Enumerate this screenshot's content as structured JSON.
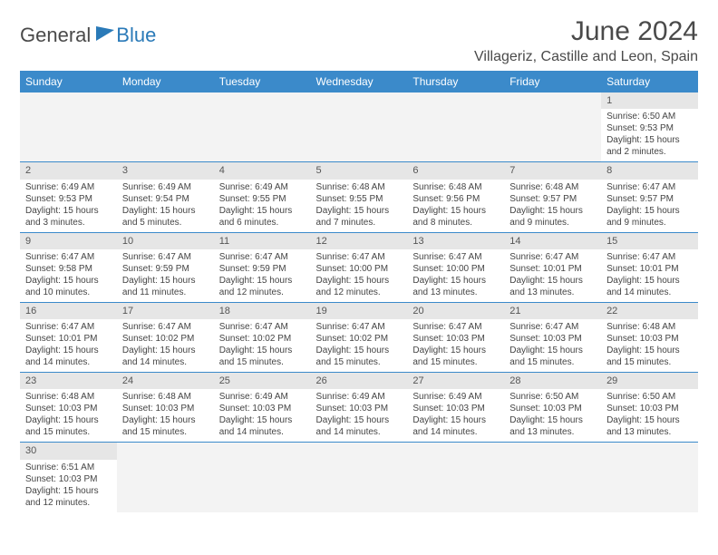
{
  "brand": {
    "general": "General",
    "blue": "Blue"
  },
  "title": "June 2024",
  "location": "Villageriz, Castille and Leon, Spain",
  "colors": {
    "header_bg": "#3b8aca",
    "header_text": "#ffffff",
    "daynum_bg": "#e6e6e6",
    "row_border": "#3b8aca"
  },
  "weekdays": [
    "Sunday",
    "Monday",
    "Tuesday",
    "Wednesday",
    "Thursday",
    "Friday",
    "Saturday"
  ],
  "weeks": [
    [
      null,
      null,
      null,
      null,
      null,
      null,
      {
        "n": "1",
        "sr": "Sunrise: 6:50 AM",
        "ss": "Sunset: 9:53 PM",
        "dl": "Daylight: 15 hours and 2 minutes."
      }
    ],
    [
      {
        "n": "2",
        "sr": "Sunrise: 6:49 AM",
        "ss": "Sunset: 9:53 PM",
        "dl": "Daylight: 15 hours and 3 minutes."
      },
      {
        "n": "3",
        "sr": "Sunrise: 6:49 AM",
        "ss": "Sunset: 9:54 PM",
        "dl": "Daylight: 15 hours and 5 minutes."
      },
      {
        "n": "4",
        "sr": "Sunrise: 6:49 AM",
        "ss": "Sunset: 9:55 PM",
        "dl": "Daylight: 15 hours and 6 minutes."
      },
      {
        "n": "5",
        "sr": "Sunrise: 6:48 AM",
        "ss": "Sunset: 9:55 PM",
        "dl": "Daylight: 15 hours and 7 minutes."
      },
      {
        "n": "6",
        "sr": "Sunrise: 6:48 AM",
        "ss": "Sunset: 9:56 PM",
        "dl": "Daylight: 15 hours and 8 minutes."
      },
      {
        "n": "7",
        "sr": "Sunrise: 6:48 AM",
        "ss": "Sunset: 9:57 PM",
        "dl": "Daylight: 15 hours and 9 minutes."
      },
      {
        "n": "8",
        "sr": "Sunrise: 6:47 AM",
        "ss": "Sunset: 9:57 PM",
        "dl": "Daylight: 15 hours and 9 minutes."
      }
    ],
    [
      {
        "n": "9",
        "sr": "Sunrise: 6:47 AM",
        "ss": "Sunset: 9:58 PM",
        "dl": "Daylight: 15 hours and 10 minutes."
      },
      {
        "n": "10",
        "sr": "Sunrise: 6:47 AM",
        "ss": "Sunset: 9:59 PM",
        "dl": "Daylight: 15 hours and 11 minutes."
      },
      {
        "n": "11",
        "sr": "Sunrise: 6:47 AM",
        "ss": "Sunset: 9:59 PM",
        "dl": "Daylight: 15 hours and 12 minutes."
      },
      {
        "n": "12",
        "sr": "Sunrise: 6:47 AM",
        "ss": "Sunset: 10:00 PM",
        "dl": "Daylight: 15 hours and 12 minutes."
      },
      {
        "n": "13",
        "sr": "Sunrise: 6:47 AM",
        "ss": "Sunset: 10:00 PM",
        "dl": "Daylight: 15 hours and 13 minutes."
      },
      {
        "n": "14",
        "sr": "Sunrise: 6:47 AM",
        "ss": "Sunset: 10:01 PM",
        "dl": "Daylight: 15 hours and 13 minutes."
      },
      {
        "n": "15",
        "sr": "Sunrise: 6:47 AM",
        "ss": "Sunset: 10:01 PM",
        "dl": "Daylight: 15 hours and 14 minutes."
      }
    ],
    [
      {
        "n": "16",
        "sr": "Sunrise: 6:47 AM",
        "ss": "Sunset: 10:01 PM",
        "dl": "Daylight: 15 hours and 14 minutes."
      },
      {
        "n": "17",
        "sr": "Sunrise: 6:47 AM",
        "ss": "Sunset: 10:02 PM",
        "dl": "Daylight: 15 hours and 14 minutes."
      },
      {
        "n": "18",
        "sr": "Sunrise: 6:47 AM",
        "ss": "Sunset: 10:02 PM",
        "dl": "Daylight: 15 hours and 15 minutes."
      },
      {
        "n": "19",
        "sr": "Sunrise: 6:47 AM",
        "ss": "Sunset: 10:02 PM",
        "dl": "Daylight: 15 hours and 15 minutes."
      },
      {
        "n": "20",
        "sr": "Sunrise: 6:47 AM",
        "ss": "Sunset: 10:03 PM",
        "dl": "Daylight: 15 hours and 15 minutes."
      },
      {
        "n": "21",
        "sr": "Sunrise: 6:47 AM",
        "ss": "Sunset: 10:03 PM",
        "dl": "Daylight: 15 hours and 15 minutes."
      },
      {
        "n": "22",
        "sr": "Sunrise: 6:48 AM",
        "ss": "Sunset: 10:03 PM",
        "dl": "Daylight: 15 hours and 15 minutes."
      }
    ],
    [
      {
        "n": "23",
        "sr": "Sunrise: 6:48 AM",
        "ss": "Sunset: 10:03 PM",
        "dl": "Daylight: 15 hours and 15 minutes."
      },
      {
        "n": "24",
        "sr": "Sunrise: 6:48 AM",
        "ss": "Sunset: 10:03 PM",
        "dl": "Daylight: 15 hours and 15 minutes."
      },
      {
        "n": "25",
        "sr": "Sunrise: 6:49 AM",
        "ss": "Sunset: 10:03 PM",
        "dl": "Daylight: 15 hours and 14 minutes."
      },
      {
        "n": "26",
        "sr": "Sunrise: 6:49 AM",
        "ss": "Sunset: 10:03 PM",
        "dl": "Daylight: 15 hours and 14 minutes."
      },
      {
        "n": "27",
        "sr": "Sunrise: 6:49 AM",
        "ss": "Sunset: 10:03 PM",
        "dl": "Daylight: 15 hours and 14 minutes."
      },
      {
        "n": "28",
        "sr": "Sunrise: 6:50 AM",
        "ss": "Sunset: 10:03 PM",
        "dl": "Daylight: 15 hours and 13 minutes."
      },
      {
        "n": "29",
        "sr": "Sunrise: 6:50 AM",
        "ss": "Sunset: 10:03 PM",
        "dl": "Daylight: 15 hours and 13 minutes."
      }
    ],
    [
      {
        "n": "30",
        "sr": "Sunrise: 6:51 AM",
        "ss": "Sunset: 10:03 PM",
        "dl": "Daylight: 15 hours and 12 minutes."
      },
      null,
      null,
      null,
      null,
      null,
      null
    ]
  ]
}
